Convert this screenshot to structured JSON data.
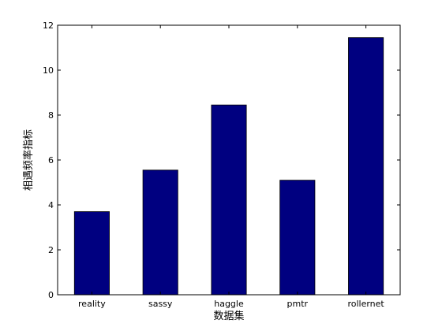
{
  "chart_data": {
    "type": "bar",
    "title": "",
    "xlabel": "数据集",
    "ylabel": "相遇频率指标",
    "categories": [
      "reality",
      "sassy",
      "haggle",
      "pmtr",
      "rollernet"
    ],
    "values": [
      3.7,
      5.55,
      8.45,
      5.1,
      11.45
    ],
    "ylim": [
      0,
      12
    ],
    "yticks": [
      "0",
      "2",
      "4",
      "6",
      "8",
      "10",
      "12"
    ],
    "grid": false,
    "legend": "none",
    "bar_color": "#000080",
    "axis_color": "#000000"
  }
}
